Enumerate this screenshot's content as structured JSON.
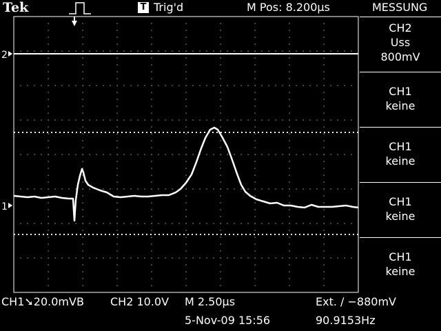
{
  "header": {
    "brand": "Tek",
    "trigger_icon": "pulse-trigger-icon",
    "trigger_status_glyph": "T",
    "trigger_status": "Trig'd",
    "horizontal_position": "M Pos: 8.200µs",
    "menu_title": "MESSUNG"
  },
  "menu": [
    {
      "line1": "CH2",
      "line2": "Uss",
      "line3": "800mV"
    },
    {
      "line1": "CH1",
      "line2": "keine"
    },
    {
      "line1": "CH1",
      "line2": "keine"
    },
    {
      "line1": "CH1",
      "line2": "keine"
    },
    {
      "line1": "CH1",
      "line2": "keine"
    }
  ],
  "markers": {
    "ch2": "2",
    "ch1": "1"
  },
  "status": {
    "ch1_scale": "CH1➘20.0mVB",
    "ch2_scale": "CH2  10.0V",
    "timebase": "M 2.50µs",
    "trigger": "Ext. ∕ −880mV",
    "date_time": "5-Nov-09 15:56",
    "frequency": "90.9153Hz"
  },
  "colors": {
    "background": "#000000",
    "trace": "#ffffff",
    "grid": "#ffffff"
  }
}
